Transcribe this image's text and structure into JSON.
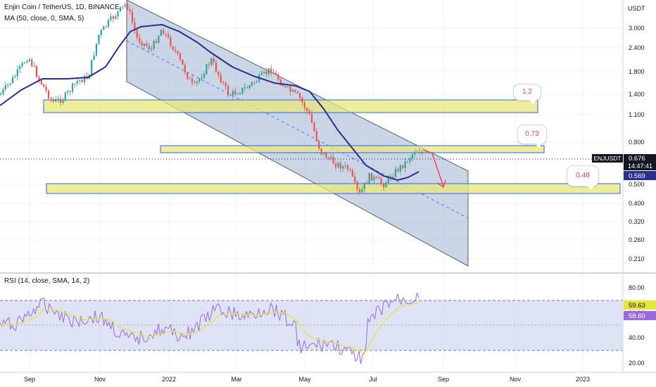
{
  "symbol_title": "Enjin Coin / TetherUS, 1D, BINANCE",
  "ma_legend": "MA (50, close, 0, SMA, 5)",
  "rsi_legend": "RSI (14, close, SMA, 14, 2)",
  "price_unit": "USDT",
  "price_ticks": [
    "3.000",
    "2.400",
    "1.800",
    "1.400",
    "1.100",
    "0.800",
    "0.500",
    "0.400",
    "0.320",
    "0.260",
    "0.210"
  ],
  "rsi_ticks": [
    "80.00",
    "60.00",
    "40.00",
    "20.00"
  ],
  "time_labels": [
    "Sep",
    "Nov",
    "2022",
    "Mar",
    "May",
    "Jul",
    "Sep",
    "Nov",
    "2023"
  ],
  "current_price": {
    "symbol": "ENJUSDT",
    "price": "0.676",
    "countdown": "14:47:41"
  },
  "ma_value": "0.569",
  "rsi_values": {
    "rsi": "59.63",
    "rsi_ma": "58.60"
  },
  "level_notes": [
    "1.2",
    "0.73",
    "0.48"
  ],
  "colors": {
    "up": "#26a69a",
    "down": "#ef5350",
    "ma": "#2a2e8c",
    "zone": "#e8e87a",
    "zone_border": "#2962ff",
    "channel": "#9fb3d2",
    "rsi": "#9c6ade",
    "rsi_ma": "#e6e63c",
    "rsi_band": "#c8d0ee",
    "arrow": "#f23645"
  }
}
